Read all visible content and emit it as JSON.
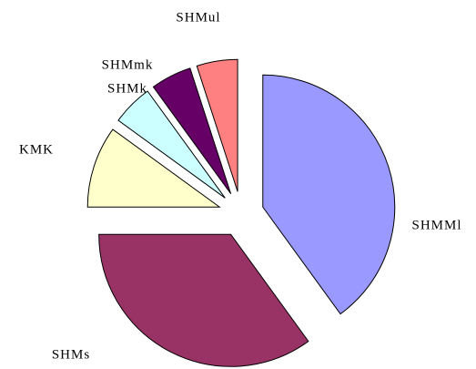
{
  "chart_data": {
    "type": "pie",
    "categories": [
      "SHMMl",
      "SHMs",
      "KMK",
      "SHMk",
      "SHMmk",
      "SHMul"
    ],
    "values": [
      40,
      35,
      10,
      5,
      5,
      5
    ],
    "colors": [
      "#9999ff",
      "#993366",
      "#ffffcc",
      "#ccffff",
      "#660066",
      "#ff8080"
    ],
    "exploded": true
  }
}
